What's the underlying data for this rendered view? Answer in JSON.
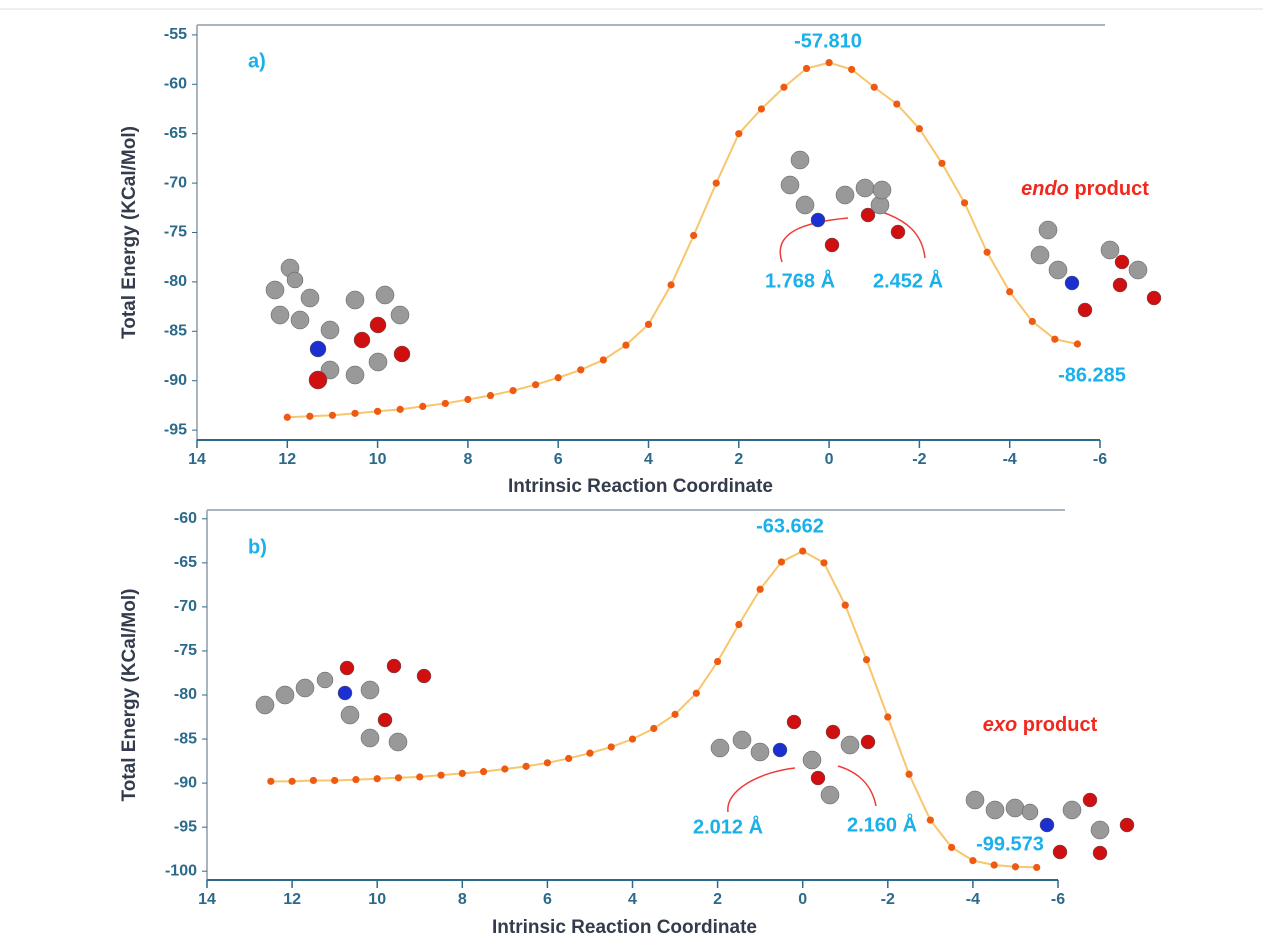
{
  "chart_data": [
    {
      "type": "line",
      "markers": true,
      "line_color": "#f7c66d",
      "color": "#ef5a12",
      "x_label": "Intrinsic Reaction Coordinate",
      "y_label": "Total Energy (KCal/Mol)",
      "panel_label": "a)",
      "peak_label": "-57.810",
      "end_label": "-86.285",
      "bond_labels": [
        "1.768 Å",
        "2.452 Å"
      ],
      "product_label": [
        "endo",
        "product"
      ],
      "xlim": [
        14,
        -6
      ],
      "ylim": [
        -96,
        -54
      ],
      "xticks": [
        14,
        12,
        10,
        8,
        6,
        4,
        2,
        0,
        -2,
        -4,
        -6
      ],
      "yticks": [
        -55,
        -60,
        -65,
        -70,
        -75,
        -80,
        -85,
        -90,
        -95
      ],
      "x": [
        12,
        11.5,
        11,
        10.5,
        10,
        9.5,
        9,
        8.5,
        8,
        7.5,
        7,
        6.5,
        6,
        5.5,
        5,
        4.5,
        4,
        3.5,
        3,
        2.5,
        2,
        1.5,
        1,
        0.5,
        0,
        -0.5,
        -1,
        -1.5,
        -2,
        -2.5,
        -3,
        -3.5,
        -4,
        -4.5,
        -5,
        -5.5
      ],
      "values": [
        -93.7,
        -93.6,
        -93.5,
        -93.3,
        -93.1,
        -92.9,
        -92.6,
        -92.3,
        -91.9,
        -91.5,
        -91.0,
        -90.4,
        -89.7,
        -88.9,
        -87.9,
        -86.4,
        -84.3,
        -80.3,
        -75.3,
        -70.0,
        -65.0,
        -62.5,
        -60.3,
        -58.4,
        -57.81,
        -58.5,
        -60.3,
        -62.0,
        -64.5,
        -68.0,
        -72.0,
        -77.0,
        -81.0,
        -84.0,
        -85.8,
        -86.285
      ]
    },
    {
      "type": "line",
      "markers": true,
      "line_color": "#f7c66d",
      "color": "#ef5a12",
      "x_label": "Intrinsic Reaction Coordinate",
      "y_label": "Total Energy (KCal/Mol)",
      "panel_label": "b)",
      "peak_label": "-63.662",
      "end_label": "-99.573",
      "bond_labels": [
        "2.012 Å",
        "2.160 Å"
      ],
      "product_label": [
        "exo",
        "product"
      ],
      "xlim": [
        14,
        -6
      ],
      "ylim": [
        -101,
        -59
      ],
      "xticks": [
        14,
        12,
        10,
        8,
        6,
        4,
        2,
        0,
        -2,
        -4,
        -6
      ],
      "yticks": [
        -60,
        -65,
        -70,
        -75,
        -80,
        -85,
        -90,
        -95,
        -100
      ],
      "x": [
        12.5,
        12,
        11.5,
        11,
        10.5,
        10,
        9.5,
        9,
        8.5,
        8,
        7.5,
        7,
        6.5,
        6,
        5.5,
        5,
        4.5,
        4,
        3.5,
        3,
        2.5,
        2,
        1.5,
        1,
        0.5,
        0,
        -0.5,
        -1,
        -1.5,
        -2,
        -2.5,
        -3,
        -3.5,
        -4,
        -4.5,
        -5,
        -5.5
      ],
      "values": [
        -89.8,
        -89.8,
        -89.7,
        -89.7,
        -89.6,
        -89.5,
        -89.4,
        -89.3,
        -89.1,
        -88.9,
        -88.7,
        -88.4,
        -88.1,
        -87.7,
        -87.2,
        -86.6,
        -85.9,
        -85.0,
        -83.8,
        -82.2,
        -79.8,
        -76.2,
        -72.0,
        -68.0,
        -64.9,
        -63.662,
        -65.0,
        -69.8,
        -76.0,
        -82.5,
        -89.0,
        -94.2,
        -97.3,
        -98.8,
        -99.3,
        -99.5,
        -99.573
      ]
    }
  ]
}
